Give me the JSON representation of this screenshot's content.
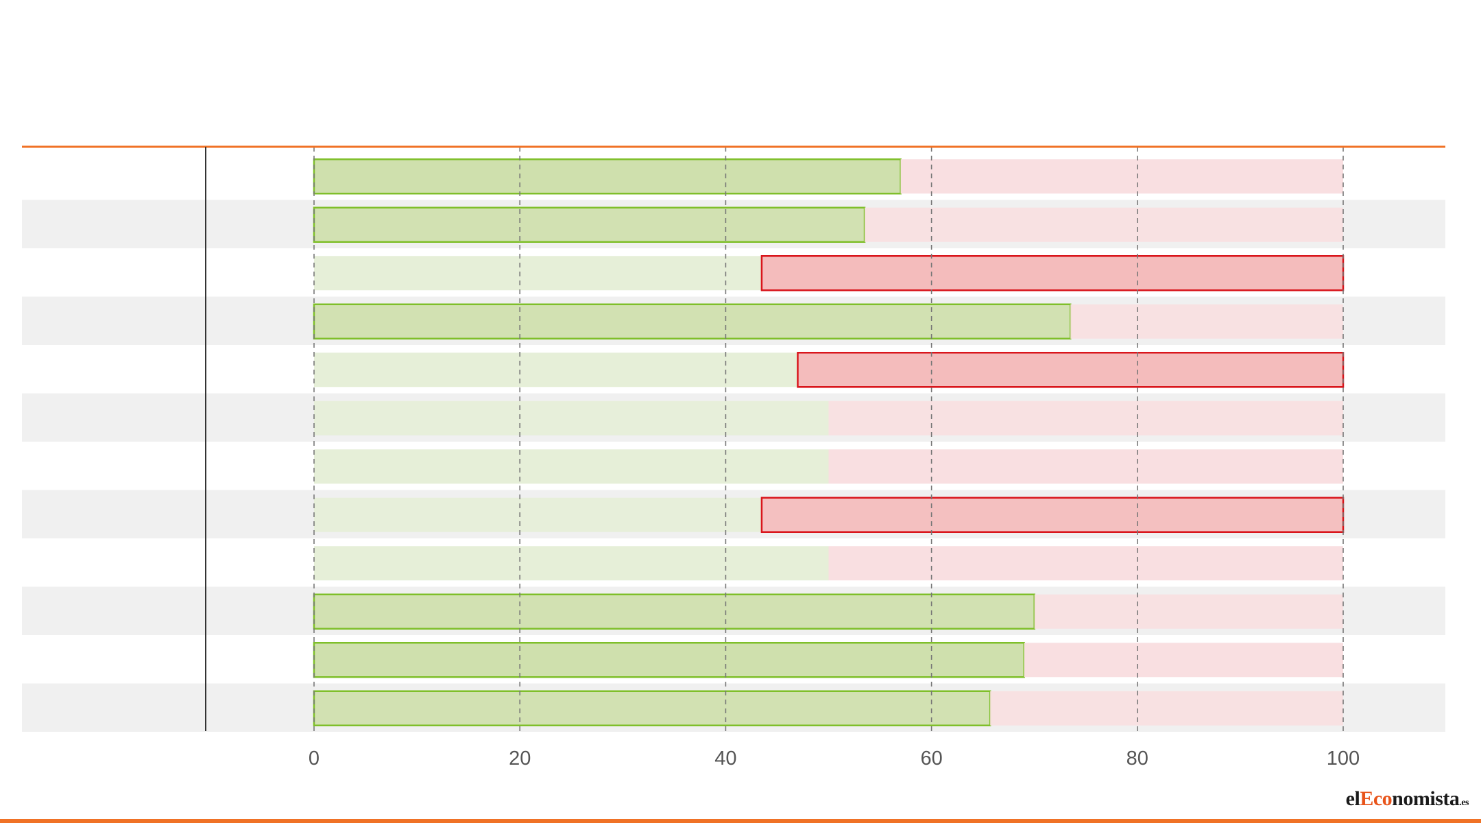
{
  "colors": {
    "accent": "#f07226",
    "green_fill": "#cfe0ad",
    "green_stroke": "#7fbf2a",
    "green_light": "#e6efd8",
    "red_fill": "#f4bcbc",
    "red_stroke": "#d9151b",
    "red_light": "#f9dfe1",
    "row_band": "#f0f0f0"
  },
  "logo": {
    "part1": "el",
    "part2": "Eco",
    "part3": "nomista",
    "part4": ".es"
  },
  "chart_data": {
    "type": "bar",
    "orientation": "horizontal",
    "stacked": true,
    "xlim": [
      0,
      100
    ],
    "xticks": [
      "0",
      "20",
      "40",
      "60",
      "80",
      "100"
    ],
    "grid": "vertical dashed",
    "categories": [
      "",
      "",
      "",
      "",
      "",
      "",
      "",
      "",
      "",
      "",
      "",
      ""
    ],
    "series": [
      {
        "values": [
          57,
          53.5,
          43.5,
          73.5,
          47,
          50,
          50,
          43.5,
          50,
          70,
          69,
          65.7
        ]
      },
      {
        "values": [
          43,
          46.5,
          56.5,
          26.5,
          53,
          50,
          50,
          56.5,
          50,
          30,
          31,
          34.3
        ]
      }
    ],
    "highlight": [
      "green",
      "green",
      "red",
      "green",
      "red",
      "none",
      "none",
      "red",
      "none",
      "green",
      "green",
      "green"
    ]
  }
}
